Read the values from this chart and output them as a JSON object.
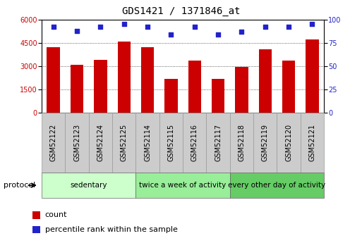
{
  "title": "GDS1421 / 1371846_at",
  "samples": [
    "GSM52122",
    "GSM52123",
    "GSM52124",
    "GSM52125",
    "GSM52114",
    "GSM52115",
    "GSM52116",
    "GSM52117",
    "GSM52118",
    "GSM52119",
    "GSM52120",
    "GSM52121"
  ],
  "counts": [
    4200,
    3100,
    3400,
    4600,
    4200,
    2200,
    3350,
    2200,
    2950,
    4100,
    3350,
    4700
  ],
  "percentiles": [
    92,
    88,
    92,
    95,
    92,
    84,
    92,
    84,
    87,
    92,
    92,
    95
  ],
  "bar_color": "#cc0000",
  "dot_color": "#2222cc",
  "left_ylim": [
    0,
    6000
  ],
  "left_yticks": [
    0,
    1500,
    3000,
    4500,
    6000
  ],
  "right_ylim": [
    0,
    100
  ],
  "right_yticks": [
    0,
    25,
    50,
    75,
    100
  ],
  "groups": [
    {
      "label": "sedentary",
      "start": 0,
      "end": 4,
      "color": "#ccffcc"
    },
    {
      "label": "twice a week of activity",
      "start": 4,
      "end": 8,
      "color": "#99ee99"
    },
    {
      "label": "every other day of activity",
      "start": 8,
      "end": 12,
      "color": "#66cc66"
    }
  ],
  "protocol_label": "protocol",
  "legend_count_label": "count",
  "legend_pct_label": "percentile rank within the sample",
  "bg_color": "#ffffff",
  "grid_color": "#333333",
  "title_fontsize": 10,
  "tick_fontsize": 7,
  "xtick_fontsize": 7,
  "label_fontsize": 8,
  "sample_box_color": "#cccccc",
  "sample_box_edge": "#999999"
}
